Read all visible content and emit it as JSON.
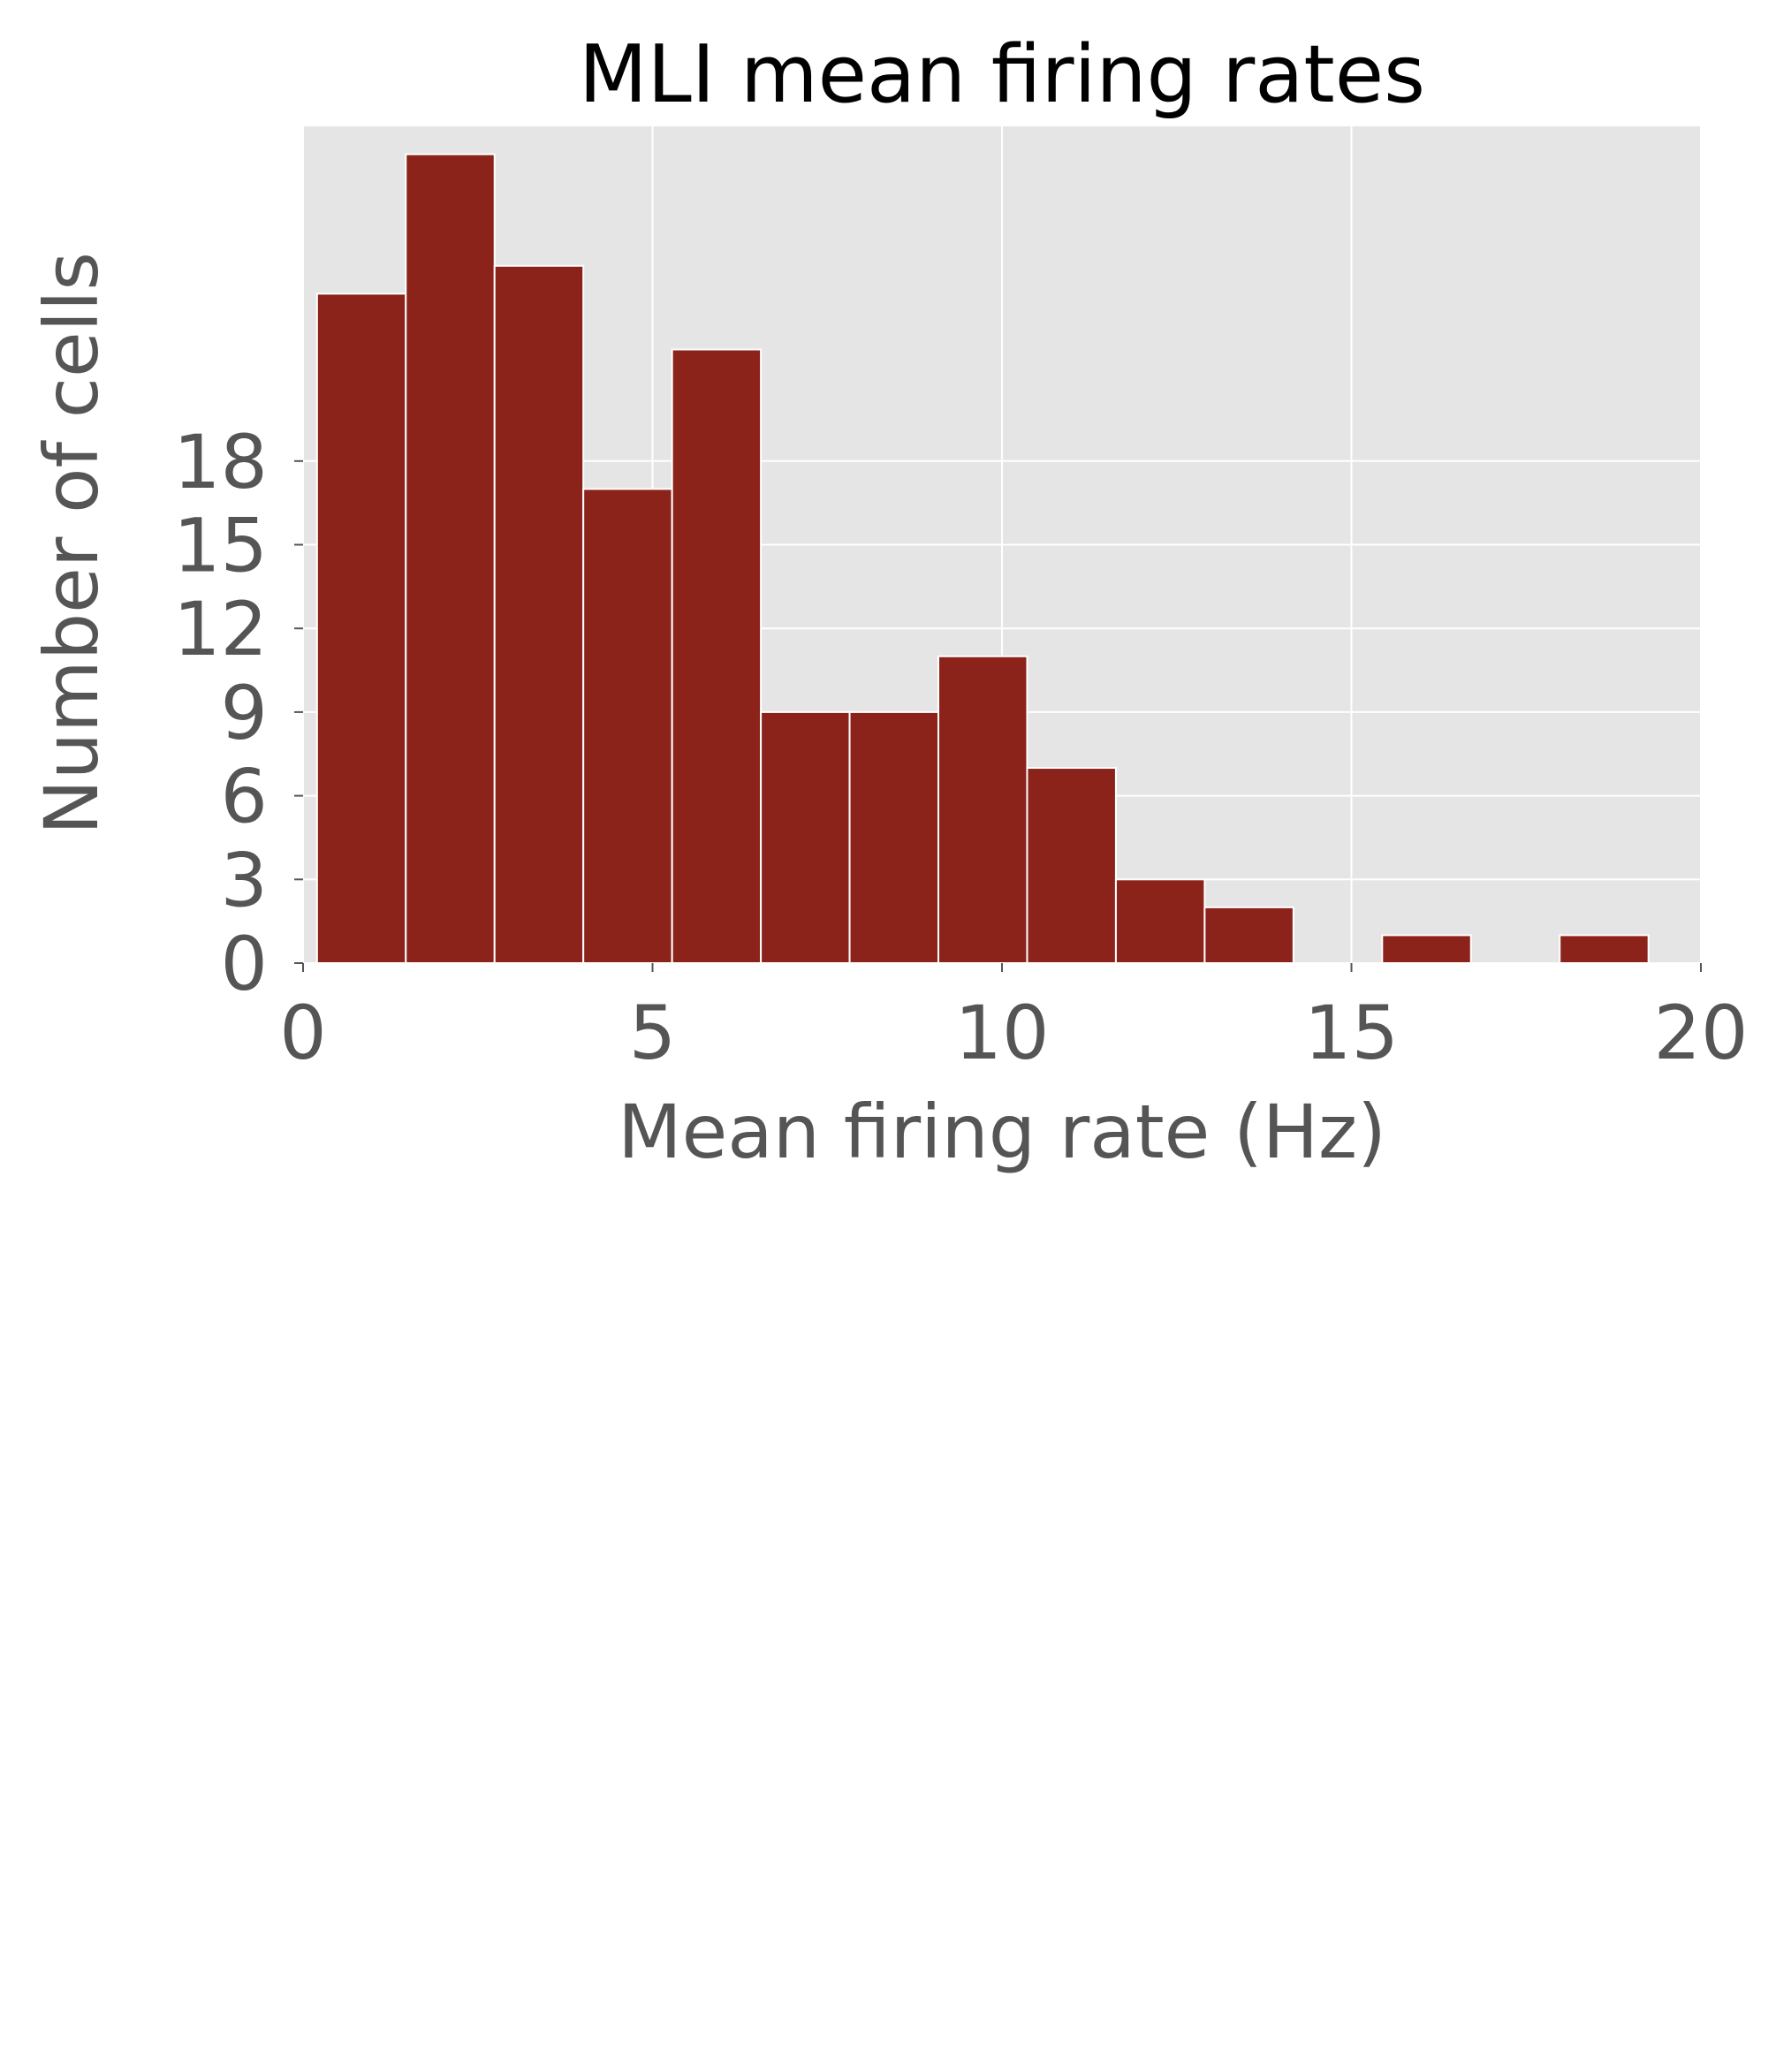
{
  "chart_data": {
    "type": "bar",
    "title": "MLI mean firing rates",
    "xlabel": "Mean firing rate (Hz)",
    "ylabel": "Number of cells",
    "xlim": [
      0,
      20
    ],
    "ylim": [
      0,
      30
    ],
    "xticks": [
      "0",
      "5",
      "10",
      "15",
      "20"
    ],
    "yticks": [
      "0",
      "3",
      "6",
      "9",
      "12",
      "15",
      "18"
    ],
    "grid": true,
    "bins": [
      {
        "x0": 0.2,
        "x1": 1.47,
        "count": 24
      },
      {
        "x0": 1.47,
        "x1": 2.74,
        "count": 29
      },
      {
        "x0": 2.74,
        "x1": 4.01,
        "count": 25
      },
      {
        "x0": 4.01,
        "x1": 5.28,
        "count": 17
      },
      {
        "x0": 5.28,
        "x1": 6.55,
        "count": 22
      },
      {
        "x0": 6.55,
        "x1": 7.82,
        "count": 9
      },
      {
        "x0": 7.82,
        "x1": 9.09,
        "count": 9
      },
      {
        "x0": 9.09,
        "x1": 10.36,
        "count": 11
      },
      {
        "x0": 10.36,
        "x1": 11.63,
        "count": 7
      },
      {
        "x0": 11.63,
        "x1": 12.9,
        "count": 3
      },
      {
        "x0": 12.9,
        "x1": 14.17,
        "count": 2
      },
      {
        "x0": 14.17,
        "x1": 15.44,
        "count": 0
      },
      {
        "x0": 15.44,
        "x1": 16.71,
        "count": 1
      },
      {
        "x0": 16.71,
        "x1": 17.98,
        "count": 0
      },
      {
        "x0": 17.98,
        "x1": 19.25,
        "count": 1
      }
    ],
    "colors": {
      "bar": "#8b231b",
      "plot_background": "#e5e5e5",
      "grid": "#ffffff"
    }
  }
}
